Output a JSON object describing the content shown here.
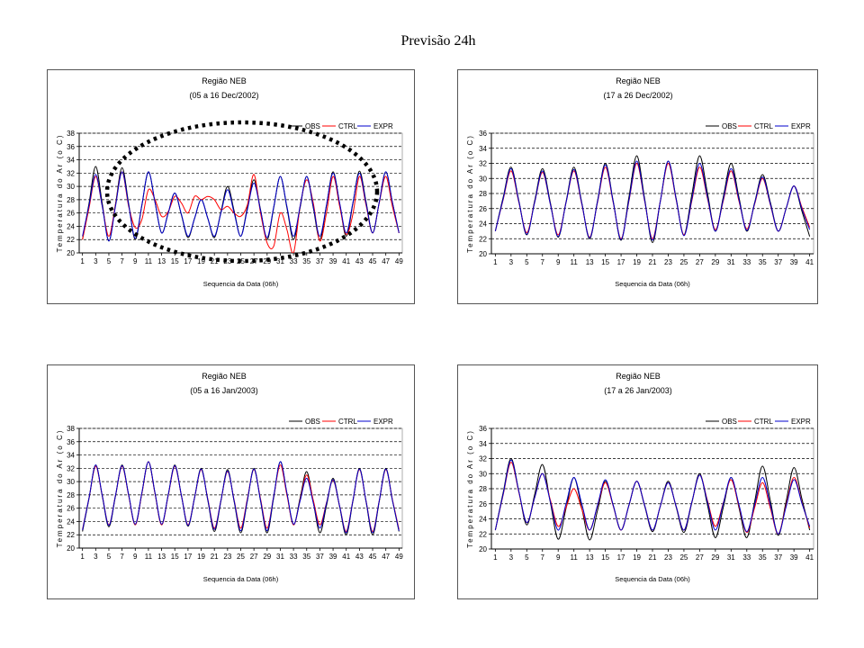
{
  "page": {
    "title": "Previsão 24h"
  },
  "chart_data": [
    {
      "type": "line",
      "title": "Região NEB",
      "subtitle": "(05 a 16 Dec/2002)",
      "xlabel": "Sequencia da Data (06h)",
      "ylabel": "Temperatura do Ar (o C)",
      "x_range": [
        1,
        49
      ],
      "xticks": [
        1,
        3,
        5,
        7,
        9,
        11,
        13,
        15,
        17,
        19,
        21,
        23,
        25,
        27,
        29,
        31,
        33,
        35,
        37,
        39,
        41,
        43,
        45,
        47,
        49
      ],
      "ylim": [
        20,
        38
      ],
      "yticks": [
        20,
        22,
        24,
        26,
        28,
        30,
        32,
        34,
        36,
        38
      ],
      "grid": true,
      "legend_position": "top-right",
      "series": [
        {
          "name": "OBS",
          "color": "#000000",
          "values": [
            22,
            27.5,
            33,
            27.4,
            21.8,
            27.3,
            32.8,
            27.4,
            22,
            27.1,
            32.2,
            27.6,
            23,
            26,
            29,
            25.7,
            22.3,
            25.2,
            28,
            25.2,
            22.3,
            26.2,
            30,
            26.3,
            22.5,
            26.8,
            31,
            26.5,
            22,
            26.8,
            31.5,
            26.8,
            22,
            26.8,
            31.5,
            26.8,
            22,
            27.1,
            32.2,
            27.4,
            22.5,
            27.4,
            32.3,
            27.7,
            23,
            27.6,
            32.2,
            27.6,
            23
          ]
        },
        {
          "name": "CTRL",
          "color": "#ff0000",
          "values": [
            22,
            26.8,
            31.5,
            27,
            22.5,
            27.2,
            32.2,
            27,
            23.8,
            25,
            29.5,
            28,
            25.5,
            26.2,
            28.5,
            27.5,
            26,
            28.5,
            28,
            28.5,
            28,
            26.5,
            27,
            26,
            25.5,
            27.2,
            31.8,
            26,
            21.5,
            21,
            26,
            23.5,
            20,
            27,
            31,
            27.5,
            21.8,
            26,
            31.5,
            27,
            22.8,
            25.8,
            31.5,
            27.2,
            23,
            27.5,
            31.5,
            27,
            23
          ]
        },
        {
          "name": "EXPR",
          "color": "#0000cc",
          "values": [
            22.5,
            27.2,
            31.8,
            27,
            21.8,
            27,
            32.2,
            27.2,
            22.2,
            27.2,
            32.2,
            27.6,
            23,
            26,
            29,
            25.8,
            22.5,
            25.2,
            28,
            25.2,
            22.5,
            26,
            29.5,
            26,
            22.5,
            26.5,
            30.5,
            26.4,
            22.3,
            26.9,
            31.5,
            27,
            22.5,
            27,
            31.5,
            27,
            22.5,
            27.2,
            32,
            27.5,
            23,
            27.5,
            32,
            27.5,
            23,
            27.6,
            32.2,
            27.6,
            23
          ]
        }
      ]
    },
    {
      "type": "line",
      "title": "Região NEB",
      "subtitle": "(17 a 26 Dec/2002)",
      "xlabel": "Sequencia da Data (06h)",
      "ylabel": "Temperatura do Ar (o C)",
      "x_range": [
        1,
        41
      ],
      "xticks": [
        1,
        3,
        5,
        7,
        9,
        11,
        13,
        15,
        17,
        19,
        21,
        23,
        25,
        27,
        29,
        31,
        33,
        35,
        37,
        39,
        41
      ],
      "ylim": [
        20,
        36
      ],
      "yticks": [
        20,
        22,
        24,
        26,
        28,
        30,
        32,
        34,
        36
      ],
      "grid": true,
      "legend_position": "top-right",
      "series": [
        {
          "name": "OBS",
          "color": "#000000",
          "values": [
            23,
            27.5,
            31.5,
            27,
            22.5,
            27,
            31.3,
            26.8,
            22.2,
            26.9,
            31.5,
            26.8,
            22,
            27,
            32,
            27,
            21.8,
            27.5,
            33,
            27.3,
            21.5,
            27,
            32.3,
            27.4,
            22.5,
            27.8,
            33,
            28,
            23,
            27.5,
            32,
            27.5,
            23,
            26.8,
            30.5,
            26.8,
            23,
            26,
            29,
            25.7,
            22.3
          ]
        },
        {
          "name": "CTRL",
          "color": "#ff0000",
          "values": [
            23,
            27.2,
            31,
            26.8,
            22.8,
            26.8,
            30.8,
            26.6,
            22.5,
            26.8,
            31,
            26.6,
            22.2,
            26.8,
            31.5,
            26.8,
            22,
            27,
            32,
            27,
            22,
            27,
            32,
            27.2,
            22.5,
            27,
            31.5,
            27.3,
            23.2,
            27,
            31,
            27,
            23.3,
            26.6,
            30,
            26.5,
            23,
            26,
            29,
            26.2,
            23.5
          ]
        },
        {
          "name": "EXPR",
          "color": "#0000cc",
          "values": [
            23,
            27.3,
            31.3,
            26.9,
            22.6,
            26.8,
            31,
            26.6,
            22.3,
            26.8,
            31.2,
            26.7,
            22.1,
            26.9,
            31.8,
            26.9,
            21.9,
            27.1,
            32.3,
            27.1,
            21.8,
            27,
            32.3,
            27.3,
            22.4,
            27.2,
            32,
            27.5,
            23,
            27.2,
            31.3,
            27.2,
            23.1,
            26.7,
            30.2,
            26.6,
            23,
            26,
            29,
            26,
            23.2
          ]
        }
      ]
    },
    {
      "type": "line",
      "title": "Região NEB",
      "subtitle": "(05 a 16 Jan/2003)",
      "xlabel": "Sequencia da Data (06h)",
      "ylabel": "Temperatura do Ar (o C)",
      "x_range": [
        1,
        49
      ],
      "xticks": [
        1,
        3,
        5,
        7,
        9,
        11,
        13,
        15,
        17,
        19,
        21,
        23,
        25,
        27,
        29,
        31,
        33,
        35,
        37,
        39,
        41,
        43,
        45,
        47,
        49
      ],
      "ylim": [
        20,
        38
      ],
      "yticks": [
        20,
        22,
        24,
        26,
        28,
        30,
        32,
        34,
        36,
        38
      ],
      "grid": true,
      "legend_position": "top-right",
      "series": [
        {
          "name": "OBS",
          "color": "#000000",
          "values": [
            22.5,
            27.5,
            32.5,
            27.8,
            23.2,
            27.8,
            32.5,
            28,
            23.5,
            28.2,
            33,
            28.2,
            23.5,
            28,
            32.5,
            27.9,
            23.3,
            27.6,
            32,
            27.2,
            22.5,
            27.1,
            31.8,
            27,
            22.3,
            27.1,
            32,
            27.1,
            22.3,
            27.6,
            33,
            28.2,
            23.5,
            27.5,
            31.5,
            26.9,
            22.3,
            26.4,
            30.5,
            26.2,
            22,
            27,
            32,
            27,
            22,
            27,
            32,
            27.2,
            22.5
          ]
        },
        {
          "name": "CTRL",
          "color": "#ff0000",
          "values": [
            22.8,
            27.6,
            32.3,
            27.9,
            23.5,
            27.9,
            32.3,
            27.9,
            23.5,
            28.2,
            33,
            28.2,
            23.5,
            27.9,
            32.3,
            27.9,
            23.5,
            27.6,
            31.8,
            27.4,
            23,
            27.2,
            31.5,
            27.2,
            23,
            27.4,
            31.8,
            27.4,
            23,
            27.8,
            32.5,
            28,
            23.5,
            27.2,
            31,
            27.2,
            23.5,
            26.8,
            30.2,
            26.3,
            22.5,
            27.1,
            31.8,
            27.1,
            22.5,
            27.1,
            31.8,
            27.3,
            22.8
          ]
        },
        {
          "name": "EXPR",
          "color": "#0000cc",
          "values": [
            22.7,
            27.6,
            32.5,
            27.9,
            23.4,
            27.9,
            32.4,
            28,
            23.6,
            28.3,
            33,
            28.3,
            23.6,
            28,
            32.4,
            27.9,
            23.4,
            27.6,
            31.9,
            27.3,
            22.8,
            27.2,
            31.6,
            27.1,
            22.6,
            27.2,
            31.9,
            27.2,
            22.6,
            27.8,
            33,
            28.3,
            23.6,
            27.1,
            30.5,
            26.8,
            23,
            26.7,
            30.3,
            26.3,
            22.3,
            27.1,
            31.9,
            27.1,
            22.3,
            27.1,
            31.9,
            27.2,
            22.6
          ]
        }
      ]
    },
    {
      "type": "line",
      "title": "Região NEB",
      "subtitle": "(17 a 26 Jan/2003)",
      "xlabel": "Sequencia da Data (06h)",
      "ylabel": "Temperatura do Ar (o C)",
      "x_range": [
        1,
        41
      ],
      "xticks": [
        1,
        3,
        5,
        7,
        9,
        11,
        13,
        15,
        17,
        19,
        21,
        23,
        25,
        27,
        29,
        31,
        33,
        35,
        37,
        39,
        41
      ],
      "ylim": [
        20,
        36
      ],
      "yticks": [
        20,
        22,
        24,
        26,
        28,
        30,
        32,
        34,
        36
      ],
      "grid": true,
      "legend_position": "top-right",
      "series": [
        {
          "name": "OBS",
          "color": "#000000",
          "values": [
            22.5,
            27.5,
            32,
            27.6,
            23.2,
            27.2,
            31.2,
            26.2,
            21.3,
            25.4,
            29.5,
            25.4,
            21.2,
            25.1,
            29,
            25.8,
            22.5,
            25.8,
            29,
            25.7,
            22.3,
            25.7,
            29,
            25.6,
            22.2,
            26.1,
            30,
            25.8,
            21.5,
            25.5,
            29.5,
            25.5,
            21.5,
            26.3,
            31,
            26.4,
            21.8,
            26.3,
            30.8,
            26.7,
            22.5
          ]
        },
        {
          "name": "CTRL",
          "color": "#ff0000",
          "values": [
            22.5,
            27.2,
            31.5,
            27.5,
            23.5,
            26.8,
            30,
            26.5,
            23,
            25.5,
            28,
            25.3,
            22.5,
            25.7,
            28.8,
            25.7,
            22.5,
            25.8,
            29,
            25.8,
            22.5,
            25.7,
            28.8,
            25.7,
            22.5,
            26.2,
            29.8,
            26.4,
            23,
            26.1,
            29.2,
            25.7,
            22.2,
            25.5,
            28.8,
            25.4,
            22,
            25.8,
            29.5,
            26.2,
            22.8
          ]
        },
        {
          "name": "EXPR",
          "color": "#0000cc",
          "values": [
            22.5,
            27.3,
            31.8,
            27.6,
            23.5,
            26.8,
            30,
            26.3,
            22.5,
            26,
            29.5,
            26,
            22.5,
            25.8,
            29.2,
            25.8,
            22.5,
            25.8,
            29,
            25.8,
            22.5,
            25.7,
            28.8,
            25.7,
            22.5,
            26.2,
            29.8,
            26.2,
            22.5,
            26,
            29.5,
            25.9,
            22.3,
            25.9,
            29.5,
            25.8,
            22,
            25.6,
            29.2,
            26.1,
            23
          ]
        }
      ]
    }
  ]
}
